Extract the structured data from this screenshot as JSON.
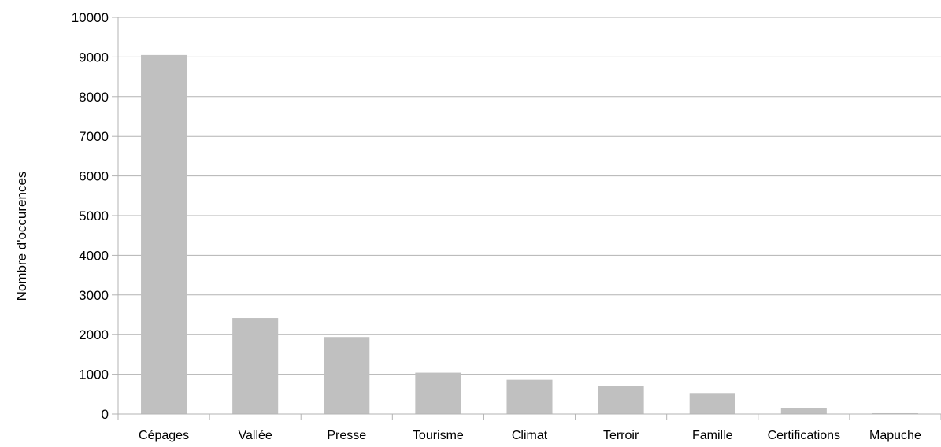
{
  "chart_data": {
    "type": "bar",
    "categories": [
      "Cépages",
      "Vallée",
      "Presse",
      "Tourisme",
      "Climat",
      "Terroir",
      "Famille",
      "Certifications",
      "Mapuche"
    ],
    "values": [
      9050,
      2420,
      1940,
      1040,
      860,
      700,
      510,
      150,
      20
    ],
    "ylabel": "Nombre d'occurences",
    "xlabel": "",
    "title": "",
    "ylim": [
      0,
      10000
    ],
    "yticks": [
      "0",
      "1000",
      "2000",
      "3000",
      "4000",
      "5000",
      "6000",
      "7000",
      "8000",
      "9000",
      "10000"
    ],
    "grid": true,
    "legend": "none",
    "colors": {
      "bar": "#c0c0c0",
      "grid": "#b3b3b3",
      "axis": "#b3b3b3",
      "text": "#000000"
    }
  }
}
